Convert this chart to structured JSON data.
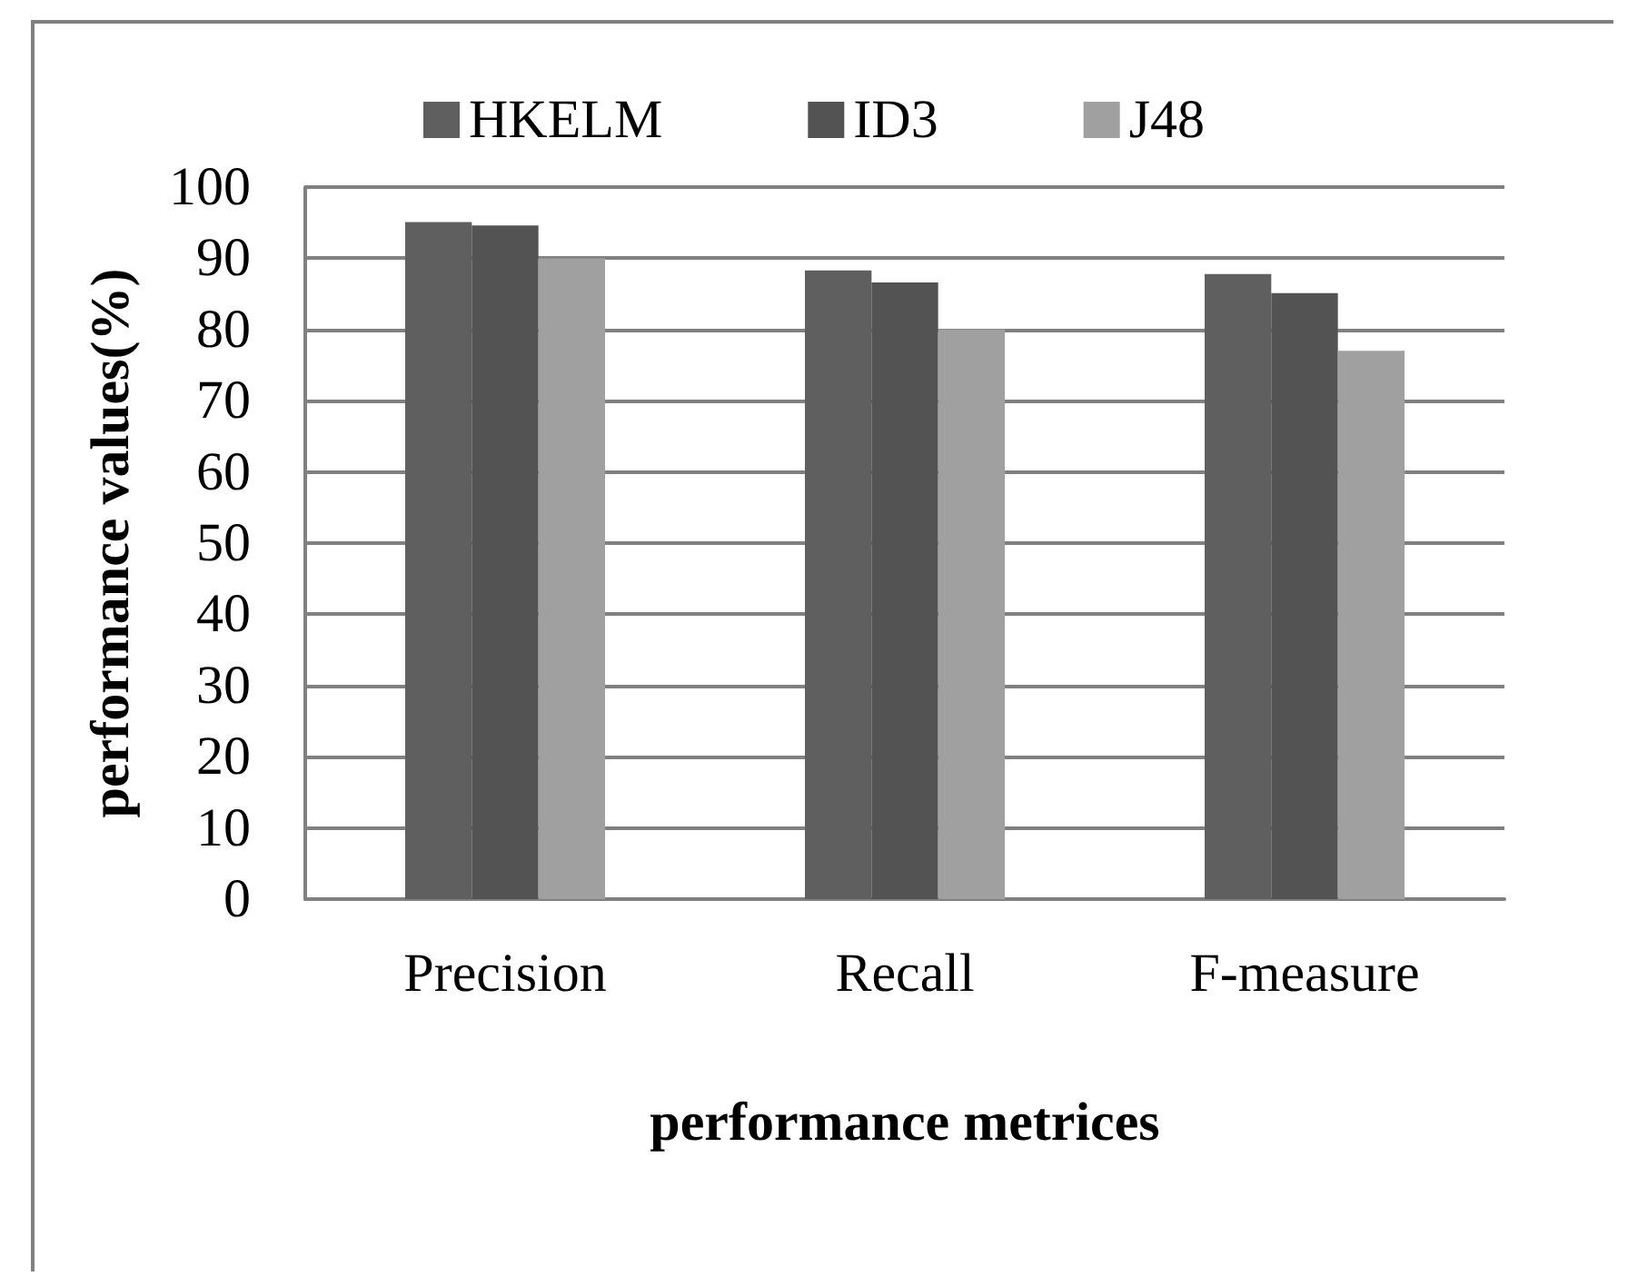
{
  "chart_data": {
    "type": "bar",
    "xlabel": "performance metrices",
    "ylabel": "performance values(%)",
    "categories": [
      "Precision",
      "Recall",
      "F-measure"
    ],
    "series": [
      {
        "name": "HKELM",
        "color": "#5f5f5f",
        "values": [
          95.1,
          88.3,
          87.8
        ]
      },
      {
        "name": "ID3",
        "color": "#535353",
        "values": [
          94.6,
          86.6,
          85.1
        ]
      },
      {
        "name": "J48",
        "color": "#a0a0a0",
        "values": [
          90,
          80,
          77
        ]
      }
    ],
    "ylim": [
      0,
      100
    ],
    "yticks": [
      0,
      10,
      20,
      30,
      40,
      50,
      60,
      70,
      80,
      90,
      100
    ],
    "grid": "y",
    "legend": "top"
  }
}
